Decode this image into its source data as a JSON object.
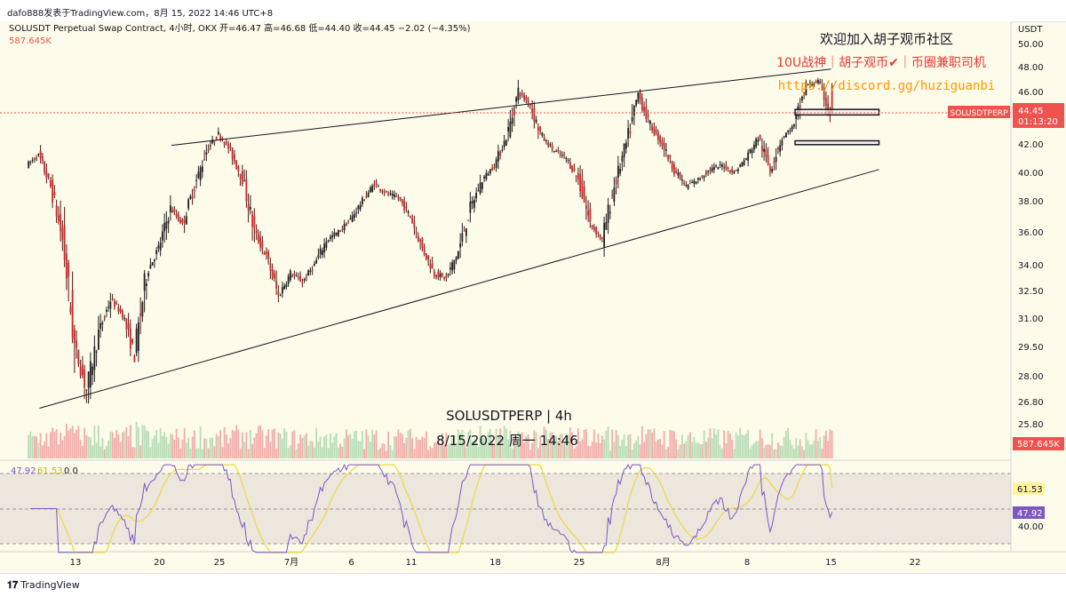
{
  "header": {
    "byline": "dafo888发表于TradingView.com，8月 15, 2022 14:46 UTC+8"
  },
  "legend": {
    "symbol_line": "SOLUSDT Perpetual Swap Contract, 4小时, OKX",
    "ohlc": "开=46.47  高=46.68  低=44.40  收=44.45  −2.02 (−4.35%)",
    "volume": "587.645K"
  },
  "annotations": {
    "line1": "欢迎加入胡子观币社区",
    "line2": "10U战神｜胡子观币✔｜币圈兼职司机",
    "line3": "https://discord.gg/huziguanbi"
  },
  "watermark": {
    "title": "SOLUSDTPERP | 4h",
    "datetime": "8/15/2022 周一 14:46"
  },
  "price_axis": {
    "unit": "USDT",
    "ticks": [
      "50.00",
      "48.00",
      "46.00",
      "44.00",
      "42.00",
      "40.00",
      "38.00",
      "36.00",
      "34.00",
      "32.50",
      "31.00",
      "29.50",
      "28.00",
      "26.80",
      "25.80"
    ],
    "last_price_label": "44.45",
    "countdown": "01:13:20",
    "symbol_tag": "SOLUSDTPERP",
    "volume_tag": "587.645K"
  },
  "rsi_panel": {
    "legend_rsi": "47.92",
    "legend_ma": "61.53",
    "legend_extra": "0  0",
    "axis_label": "40.00",
    "tag_ma": "61.53",
    "tag_rsi": "47.92"
  },
  "time_axis": {
    "labels": [
      "13",
      "20",
      "25",
      "7月",
      "6",
      "11",
      "18",
      "25",
      "8月",
      "8",
      "15",
      "22"
    ]
  },
  "footer": {
    "brand": "TradingView"
  },
  "colors": {
    "background": "#fdfbe9",
    "up": "#26a69a",
    "down": "#ef5350",
    "candle_body_up": "#1f1f1f",
    "trendline": "#131722",
    "rsi_line": "#7e57c2",
    "rsi_ma": "#f0d73f",
    "annotation_red": "#e53935",
    "annotation_orange": "#ff9800",
    "price_tag": "#ef5350",
    "rsi_tag_ma": "#fff59d",
    "rsi_tag_rsi": "#7e57c2"
  },
  "chart_data": {
    "type": "candlestick",
    "symbol": "SOLUSDT",
    "interval": "4小时",
    "exchange": "OKX",
    "ylim": [
      25.5,
      50.6
    ],
    "x_range_days": [
      "2022-06-09",
      "2022-08-23"
    ],
    "price_path": [
      {
        "t": "2022-06-09",
        "p": 40.5
      },
      {
        "t": "2022-06-10",
        "p": 41.2
      },
      {
        "t": "2022-06-11",
        "p": 39.0
      },
      {
        "t": "2022-06-12",
        "p": 35.5
      },
      {
        "t": "2022-06-13",
        "p": 29.5
      },
      {
        "t": "2022-06-14",
        "p": 27.3
      },
      {
        "t": "2022-06-15",
        "p": 30.2
      },
      {
        "t": "2022-06-16",
        "p": 32.0
      },
      {
        "t": "2022-06-17",
        "p": 31.2
      },
      {
        "t": "2022-06-18",
        "p": 29.0
      },
      {
        "t": "2022-06-19",
        "p": 33.5
      },
      {
        "t": "2022-06-20",
        "p": 35.0
      },
      {
        "t": "2022-06-21",
        "p": 37.5
      },
      {
        "t": "2022-06-22",
        "p": 36.5
      },
      {
        "t": "2022-06-23",
        "p": 39.0
      },
      {
        "t": "2022-06-24",
        "p": 41.5
      },
      {
        "t": "2022-06-25",
        "p": 42.8
      },
      {
        "t": "2022-06-26",
        "p": 41.5
      },
      {
        "t": "2022-06-27",
        "p": 39.5
      },
      {
        "t": "2022-06-28",
        "p": 36.0
      },
      {
        "t": "2022-06-29",
        "p": 34.5
      },
      {
        "t": "2022-06-30",
        "p": 32.2
      },
      {
        "t": "2022-07-01",
        "p": 33.5
      },
      {
        "t": "2022-07-02",
        "p": 33.0
      },
      {
        "t": "2022-07-03",
        "p": 34.0
      },
      {
        "t": "2022-07-04",
        "p": 35.5
      },
      {
        "t": "2022-07-05",
        "p": 36.0
      },
      {
        "t": "2022-07-06",
        "p": 36.8
      },
      {
        "t": "2022-07-07",
        "p": 38.0
      },
      {
        "t": "2022-07-08",
        "p": 39.2
      },
      {
        "t": "2022-07-09",
        "p": 38.5
      },
      {
        "t": "2022-07-10",
        "p": 38.2
      },
      {
        "t": "2022-07-11",
        "p": 37.0
      },
      {
        "t": "2022-07-12",
        "p": 35.0
      },
      {
        "t": "2022-07-13",
        "p": 33.5
      },
      {
        "t": "2022-07-14",
        "p": 33.2
      },
      {
        "t": "2022-07-15",
        "p": 34.8
      },
      {
        "t": "2022-07-16",
        "p": 37.5
      },
      {
        "t": "2022-07-17",
        "p": 39.5
      },
      {
        "t": "2022-07-18",
        "p": 40.5
      },
      {
        "t": "2022-07-19",
        "p": 42.5
      },
      {
        "t": "2022-07-20",
        "p": 46.0
      },
      {
        "t": "2022-07-21",
        "p": 45.0
      },
      {
        "t": "2022-07-22",
        "p": 42.5
      },
      {
        "t": "2022-07-23",
        "p": 41.5
      },
      {
        "t": "2022-07-24",
        "p": 41.0
      },
      {
        "t": "2022-07-25",
        "p": 39.5
      },
      {
        "t": "2022-07-26",
        "p": 36.5
      },
      {
        "t": "2022-07-27",
        "p": 35.5
      },
      {
        "t": "2022-07-28",
        "p": 39.0
      },
      {
        "t": "2022-07-29",
        "p": 42.0
      },
      {
        "t": "2022-07-30",
        "p": 45.8
      },
      {
        "t": "2022-07-31",
        "p": 43.5
      },
      {
        "t": "2022-08-01",
        "p": 42.0
      },
      {
        "t": "2022-08-02",
        "p": 40.2
      },
      {
        "t": "2022-08-03",
        "p": 39.0
      },
      {
        "t": "2022-08-04",
        "p": 39.5
      },
      {
        "t": "2022-08-05",
        "p": 40.2
      },
      {
        "t": "2022-08-06",
        "p": 40.5
      },
      {
        "t": "2022-08-07",
        "p": 40.0
      },
      {
        "t": "2022-08-08",
        "p": 41.0
      },
      {
        "t": "2022-08-09",
        "p": 42.5
      },
      {
        "t": "2022-08-10",
        "p": 40.2
      },
      {
        "t": "2022-08-11",
        "p": 42.5
      },
      {
        "t": "2022-08-12",
        "p": 43.5
      },
      {
        "t": "2022-08-13",
        "p": 46.5
      },
      {
        "t": "2022-08-14",
        "p": 46.8
      },
      {
        "t": "2022-08-15",
        "p": 44.45
      }
    ],
    "last": {
      "open": 46.47,
      "high": 46.68,
      "low": 44.4,
      "close": 44.45,
      "change": -2.02,
      "change_pct": -4.35
    },
    "trendlines": [
      {
        "from": {
          "t": "2022-06-21",
          "p": 41.9
        },
        "to": {
          "t": "2022-08-15",
          "p": 47.8
        }
      },
      {
        "from": {
          "t": "2022-06-10",
          "p": 26.5
        },
        "to": {
          "t": "2022-08-19",
          "p": 40.2
        }
      }
    ],
    "zones": [
      {
        "from": "2022-08-12",
        "to": "2022-08-19",
        "low": 44.3,
        "high": 44.7
      },
      {
        "from": "2022-08-12",
        "to": "2022-08-19",
        "low": 41.95,
        "high": 42.25
      }
    ],
    "volume": {
      "last": "587.645K"
    },
    "rsi": {
      "value": 47.92,
      "ma": 61.53
    }
  }
}
